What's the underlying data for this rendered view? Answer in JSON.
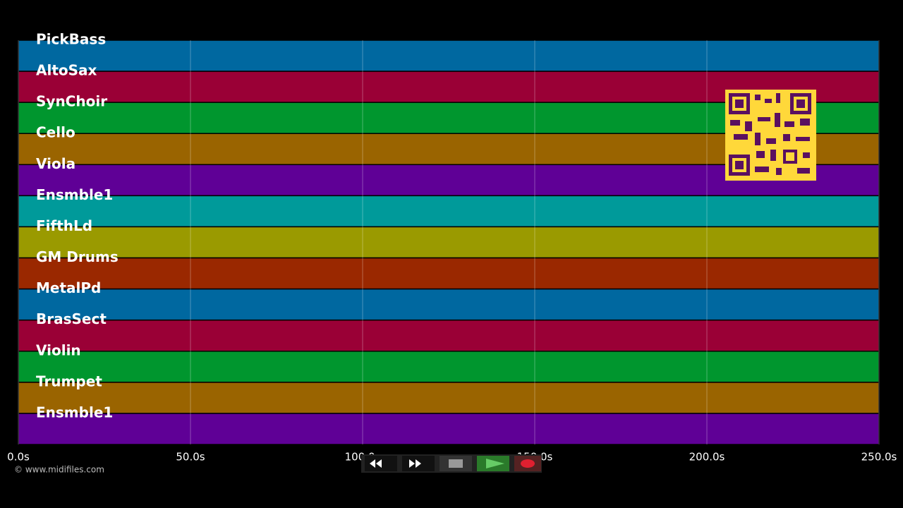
{
  "tracks": [
    {
      "name": "PickBass",
      "color": "#0068a0"
    },
    {
      "name": "AltoSax",
      "color": "#9a0036"
    },
    {
      "name": "SynChoir",
      "color": "#00962e"
    },
    {
      "name": "Cello",
      "color": "#9a6400"
    },
    {
      "name": "Viola",
      "color": "#5f0096"
    },
    {
      "name": "Ensmble1",
      "color": "#009a9a"
    },
    {
      "name": "FifthLd",
      "color": "#9a9a00"
    },
    {
      "name": "GM Drums",
      "color": "#9a2800"
    },
    {
      "name": "MetalPd",
      "color": "#0068a0"
    },
    {
      "name": "BrasSect",
      "color": "#9a0036"
    },
    {
      "name": "Violin",
      "color": "#00962e"
    },
    {
      "name": "Trumpet",
      "color": "#9a6400"
    },
    {
      "name": "Ensmble1",
      "color": "#5f0096"
    }
  ],
  "time_axis": {
    "xlim": [
      0,
      250
    ],
    "xticks": [
      {
        "value": 0,
        "label": "0.0s"
      },
      {
        "value": 50,
        "label": "50.0s"
      },
      {
        "value": 100,
        "label": "100.0s"
      },
      {
        "value": 150,
        "label": "150.0s"
      },
      {
        "value": 200,
        "label": "200.0s"
      },
      {
        "value": 250,
        "label": "250.0s"
      }
    ]
  },
  "credit": "© www.midifiles.com"
}
